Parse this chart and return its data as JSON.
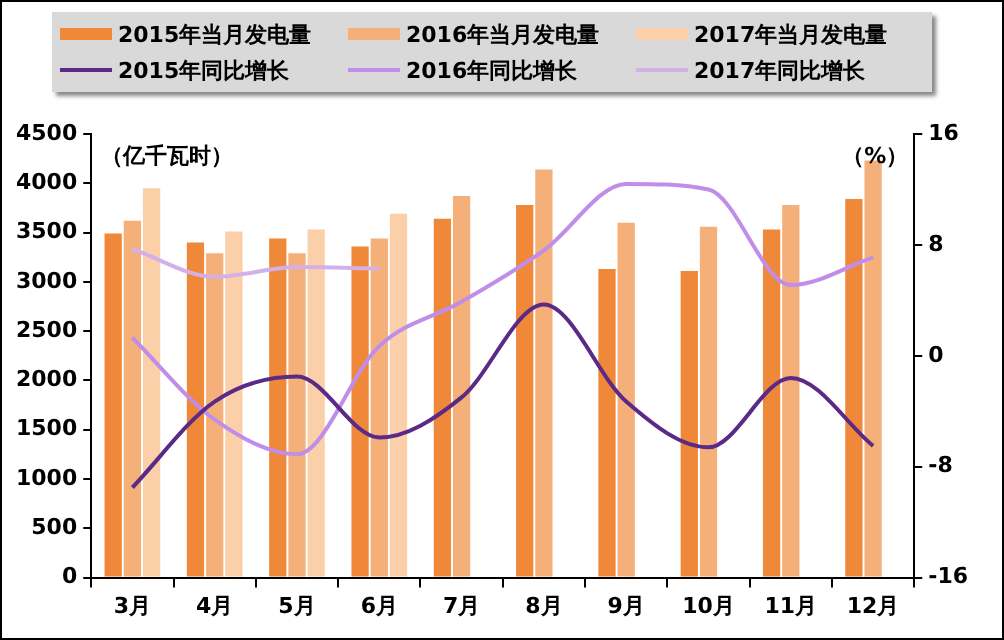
{
  "chart_data": {
    "type": "bar",
    "ylabel": "（亿千瓦时）",
    "y2label": "（%）",
    "categories": [
      "3月",
      "4月",
      "5月",
      "6月",
      "7月",
      "8月",
      "9月",
      "10月",
      "11月",
      "12月"
    ],
    "series": [
      {
        "name": "2015年当月发电量",
        "color": "#f0883a",
        "values": [
          3490,
          3400,
          3440,
          3360,
          3640,
          3780,
          3130,
          3110,
          3530,
          3840
        ]
      },
      {
        "name": "2016年当月发电量",
        "color": "#f5b07a",
        "values": [
          3620,
          3290,
          3290,
          3440,
          3870,
          4140,
          3600,
          3560,
          3780,
          4230
        ]
      },
      {
        "name": "2017年当月发电量",
        "color": "#fbd0a8",
        "values": [
          3950,
          3510,
          3530,
          3690,
          null,
          null,
          null,
          null,
          null,
          null
        ]
      },
      {
        "name": "2015年同比增长",
        "type": "line",
        "axis": "y2",
        "color": "#5b2a86",
        "values": [
          -9.5,
          -3.3,
          -1.5,
          -5.9,
          -3.0,
          3.7,
          -3.3,
          -6.6,
          -1.6,
          -6.5
        ]
      },
      {
        "name": "2016年同比增长",
        "type": "line",
        "axis": "y2",
        "color": "#c08ee8",
        "values": [
          1.3,
          -4.6,
          -7.1,
          0.7,
          3.9,
          7.6,
          12.4,
          12.0,
          5.1,
          7.1
        ]
      },
      {
        "name": "2017年同比增长",
        "type": "line",
        "axis": "y2",
        "color": "#d4b0e8",
        "values": [
          7.7,
          5.7,
          6.4,
          6.3,
          null,
          null,
          null,
          null,
          null,
          null
        ]
      }
    ],
    "ylim": [
      0,
      4500
    ],
    "yticks": [
      0,
      500,
      1000,
      1500,
      2000,
      2500,
      3000,
      3500,
      4000,
      4500
    ],
    "y2lim": [
      -16,
      16
    ],
    "y2ticks": [
      -16,
      -8,
      0,
      8,
      16
    ],
    "grid": false,
    "legend": "top",
    "marker": "none",
    "line_style": "solid"
  }
}
